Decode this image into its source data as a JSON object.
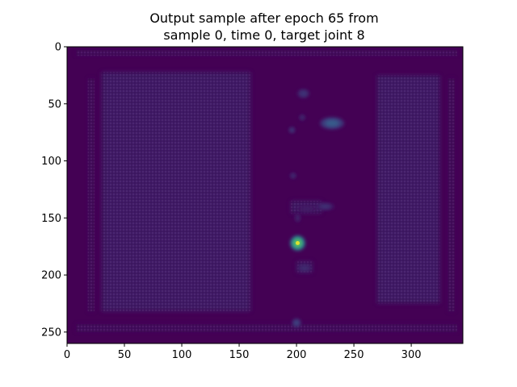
{
  "chart_data": {
    "type": "heatmap",
    "title_lines": [
      "Output sample after epoch 65 from",
      "sample 0, time 0, target joint 8"
    ],
    "xlabel": "",
    "ylabel": "",
    "xlim": [
      0,
      345
    ],
    "ylim": [
      260,
      0
    ],
    "x_ticks": [
      0,
      50,
      100,
      150,
      200,
      250,
      300
    ],
    "y_ticks": [
      0,
      50,
      100,
      150,
      200,
      250
    ],
    "colormap": "viridis",
    "background_color": "#440154",
    "grid": false,
    "legend": "none",
    "regions": [
      {
        "x0": 30,
        "y0": 22,
        "x1": 160,
        "y1": 232,
        "intensity": 0.09
      },
      {
        "x0": 270,
        "y0": 25,
        "x1": 325,
        "y1": 225,
        "intensity": 0.09
      },
      {
        "x0": 8,
        "y0": 3,
        "x1": 340,
        "y1": 8,
        "intensity": 0.05
      },
      {
        "x0": 8,
        "y0": 243,
        "x1": 340,
        "y1": 250,
        "intensity": 0.05
      },
      {
        "x0": 18,
        "y0": 28,
        "x1": 24,
        "y1": 232,
        "intensity": 0.04
      },
      {
        "x0": 332,
        "y0": 28,
        "x1": 338,
        "y1": 232,
        "intensity": 0.04
      },
      {
        "x0": 195,
        "y0": 135,
        "x1": 222,
        "y1": 146,
        "intensity": 0.08
      },
      {
        "x0": 200,
        "y0": 188,
        "x1": 214,
        "y1": 198,
        "intensity": 0.08
      }
    ],
    "blobs": [
      {
        "x": 201,
        "y": 172,
        "rx": 5,
        "ry": 5,
        "intensity": 0.95
      },
      {
        "x": 231,
        "y": 67,
        "rx": 8,
        "ry": 4,
        "intensity": 0.38
      },
      {
        "x": 206,
        "y": 41,
        "rx": 4,
        "ry": 3,
        "intensity": 0.22
      },
      {
        "x": 225,
        "y": 140,
        "rx": 6,
        "ry": 2.5,
        "intensity": 0.2
      },
      {
        "x": 207,
        "y": 194,
        "rx": 5,
        "ry": 2.5,
        "intensity": 0.18
      },
      {
        "x": 200,
        "y": 242,
        "rx": 3,
        "ry": 3,
        "intensity": 0.28
      },
      {
        "x": 209,
        "y": 142,
        "rx": 7,
        "ry": 2,
        "intensity": 0.12
      },
      {
        "x": 201,
        "y": 150,
        "rx": 2,
        "ry": 3,
        "intensity": 0.14
      },
      {
        "x": 196,
        "y": 73,
        "rx": 2,
        "ry": 2,
        "intensity": 0.25
      },
      {
        "x": 197,
        "y": 113,
        "rx": 2,
        "ry": 2,
        "intensity": 0.2
      },
      {
        "x": 205,
        "y": 62,
        "rx": 2,
        "ry": 2,
        "intensity": 0.18
      }
    ]
  }
}
